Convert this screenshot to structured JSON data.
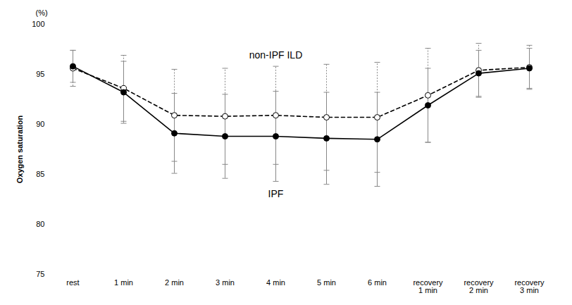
{
  "chart_data": {
    "type": "line",
    "y_label": "Oxygen saturation",
    "y_unit": "(%)",
    "categories": [
      "rest",
      "1 min",
      "2 min",
      "3 min",
      "4 min",
      "5 min",
      "6 min",
      "recovery 1 min",
      "recovery 2 min",
      "recovery 3 min"
    ],
    "ylim": [
      75,
      100
    ],
    "yticks": [
      75,
      80,
      85,
      90,
      95,
      100
    ],
    "grid": false,
    "series": [
      {
        "name": "non-IPF ILD",
        "color": "#000000",
        "marker": "open_circle",
        "line_style": "dashed",
        "values": [
          95.6,
          93.6,
          90.9,
          90.8,
          90.9,
          90.7,
          90.7,
          92.9,
          95.4,
          95.7
        ],
        "errors": [
          1.8,
          3.3,
          4.6,
          4.8,
          4.9,
          5.3,
          5.5,
          4.7,
          2.7,
          2.2
        ]
      },
      {
        "name": "IPF",
        "color": "#000000",
        "marker": "filled_circle",
        "line_style": "solid",
        "values": [
          95.8,
          93.2,
          89.1,
          88.8,
          88.8,
          88.6,
          88.5,
          91.9,
          95.1,
          95.6
        ],
        "errors": [
          1.6,
          3.1,
          4.0,
          4.2,
          4.5,
          4.6,
          4.7,
          3.7,
          2.3,
          2.0
        ]
      }
    ]
  }
}
